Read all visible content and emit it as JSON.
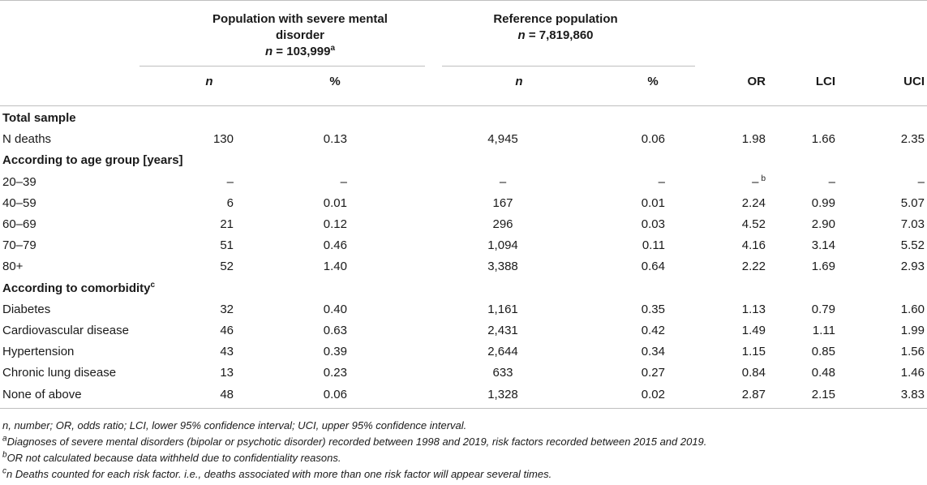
{
  "header": {
    "group_smd": {
      "title_line1": "Population with severe mental",
      "title_line2": "disorder",
      "n_label": "n",
      "n_value": " = 103,999",
      "n_sup": "a"
    },
    "group_ref": {
      "title": "Reference population",
      "n_label": "n",
      "n_value": " = 7,819,860"
    },
    "columns": {
      "smd_n": "n",
      "smd_pct": "%",
      "ref_n": "n",
      "ref_pct": "%",
      "or": "OR",
      "lci": "LCI",
      "uci": "UCI"
    }
  },
  "rows": [
    {
      "label": "Total sample",
      "section": true
    },
    {
      "label": "N deaths",
      "smd_n": "130",
      "smd_pct": "0.13",
      "ref_n": "4,945",
      "ref_pct": "0.06",
      "or": "1.98",
      "lci": "1.66",
      "uci": "2.35"
    },
    {
      "label": "According to age group [years]",
      "section": true
    },
    {
      "label": "20–39",
      "smd_n": "–",
      "smd_pct": "–",
      "ref_n": "–",
      "ref_pct": "–",
      "or": "–",
      "or_sup": "b",
      "lci": "–",
      "uci": "–"
    },
    {
      "label": "40–59",
      "smd_n": "6",
      "smd_pct": "0.01",
      "ref_n": "167",
      "ref_pct": "0.01",
      "or": "2.24",
      "lci": "0.99",
      "uci": "5.07"
    },
    {
      "label": "60–69",
      "smd_n": "21",
      "smd_pct": "0.12",
      "ref_n": "296",
      "ref_pct": "0.03",
      "or": "4.52",
      "lci": "2.90",
      "uci": "7.03"
    },
    {
      "label": "70–79",
      "smd_n": "51",
      "smd_pct": "0.46",
      "ref_n": "1,094",
      "ref_pct": "0.11",
      "or": "4.16",
      "lci": "3.14",
      "uci": "5.52"
    },
    {
      "label": "80+",
      "smd_n": "52",
      "smd_pct": "1.40",
      "ref_n": "3,388",
      "ref_pct": "0.64",
      "or": "2.22",
      "lci": "1.69",
      "uci": "2.93"
    },
    {
      "label": "According to comorbidity",
      "label_sup": "c",
      "section": true
    },
    {
      "label": "Diabetes",
      "smd_n": "32",
      "smd_pct": "0.40",
      "ref_n": "1,161",
      "ref_pct": "0.35",
      "or": "1.13",
      "lci": "0.79",
      "uci": "1.60"
    },
    {
      "label": "Cardiovascular disease",
      "smd_n": "46",
      "smd_pct": "0.63",
      "ref_n": "2,431",
      "ref_pct": "0.42",
      "or": "1.49",
      "lci": "1.11",
      "uci": "1.99"
    },
    {
      "label": "Hypertension",
      "smd_n": "43",
      "smd_pct": "0.39",
      "ref_n": "2,644",
      "ref_pct": "0.34",
      "or": "1.15",
      "lci": "0.85",
      "uci": "1.56"
    },
    {
      "label": "Chronic lung disease",
      "smd_n": "13",
      "smd_pct": "0.23",
      "ref_n": "633",
      "ref_pct": "0.27",
      "or": "0.84",
      "lci": "0.48",
      "uci": "1.46"
    },
    {
      "label": "None of above",
      "smd_n": "48",
      "smd_pct": "0.06",
      "ref_n": "1,328",
      "ref_pct": "0.02",
      "or": "2.87",
      "lci": "2.15",
      "uci": "3.83"
    }
  ],
  "footnotes": {
    "abbrev": "n, number; OR, odds ratio; LCI, lower 95% confidence interval; UCI, upper 95% confidence interval.",
    "a_mark": "a",
    "a_text": "Diagnoses of severe mental disorders (bipolar or psychotic disorder) recorded between 1998 and 2019, risk factors recorded between 2015 and 2019.",
    "b_mark": "b",
    "b_text": "OR not calculated because data withheld due to confidentiality reasons.",
    "c_mark": "c",
    "c_text": "n Deaths counted for each risk factor. i.e., deaths associated with more than one risk factor will appear several times."
  }
}
